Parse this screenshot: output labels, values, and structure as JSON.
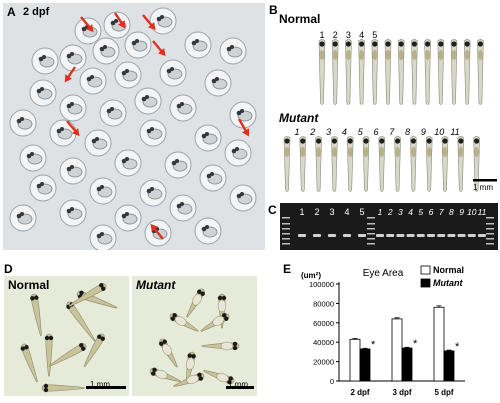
{
  "panels": {
    "a": {
      "label": "A",
      "stage": "2 dpf"
    },
    "b": {
      "label": "B",
      "normal": "Normal",
      "mutant": "Mutant",
      "scale": "1 mm",
      "normal_numbers": [
        "1",
        "2",
        "3",
        "4",
        "5"
      ],
      "mutant_numbers": [
        "1",
        "2",
        "3",
        "4",
        "5",
        "6",
        "7",
        "8",
        "9",
        "10",
        "11"
      ]
    },
    "c": {
      "label": "C",
      "lanes": [
        "1",
        "2",
        "3",
        "4",
        "5",
        "1",
        "2",
        "3",
        "4",
        "5",
        "6",
        "7",
        "8",
        "9",
        "10",
        "11"
      ]
    },
    "d": {
      "label": "D",
      "normal": "Normal",
      "mutant": "Mutant",
      "scale": "1 mm"
    },
    "e": {
      "label": "E"
    }
  },
  "colors": {
    "arrow": "#e0301e",
    "dish": "#dcdfe2",
    "gel": "#1a1a1a",
    "band": "#e6e6e6"
  },
  "chart_data": {
    "type": "bar",
    "title": "Eye Area",
    "ylabel": "(um²)",
    "categories": [
      "2 dpf",
      "3 dpf",
      "5 dpf"
    ],
    "yticks": [
      "0",
      "20000",
      "40000",
      "60000",
      "80000",
      "100000"
    ],
    "ylim": [
      0,
      100000
    ],
    "series": [
      {
        "name": "Normal",
        "values": [
          43000,
          64000,
          76000
        ],
        "errors": [
          800,
          1200,
          1500
        ],
        "fill": "#ffffff"
      },
      {
        "name": "Mutant",
        "values": [
          33000,
          34000,
          31000
        ],
        "errors": [
          700,
          800,
          800
        ],
        "fill": "#000000",
        "star": "*"
      }
    ],
    "legend": "top-right"
  }
}
